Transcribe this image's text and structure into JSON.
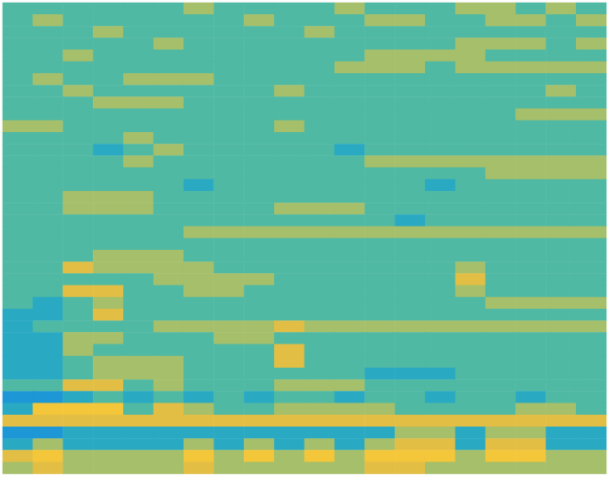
{
  "chart_data": {
    "type": "heatmap",
    "value_range": [
      0,
      9
    ],
    "tick_labels": false,
    "grid": false,
    "cells": [
      [
        5,
        5,
        5,
        5,
        5,
        5,
        6,
        5,
        5,
        5,
        5,
        6,
        5,
        5,
        5,
        6,
        6,
        5,
        6,
        5
      ],
      [
        5,
        6,
        5,
        5,
        5,
        5,
        5,
        5,
        6,
        5,
        5,
        5,
        6,
        6,
        5,
        5,
        6,
        6,
        5,
        6
      ],
      [
        5,
        5,
        5,
        6,
        5,
        5,
        5,
        5,
        5,
        5,
        6,
        5,
        5,
        5,
        5,
        5,
        5,
        5,
        5,
        5
      ],
      [
        5,
        5,
        5,
        5,
        5,
        6,
        5,
        5,
        5,
        5,
        5,
        5,
        5,
        5,
        5,
        6,
        6,
        6,
        5,
        6
      ],
      [
        5,
        5,
        6,
        5,
        5,
        5,
        5,
        5,
        5,
        5,
        5,
        5,
        6,
        6,
        6,
        6,
        5,
        5,
        5,
        5
      ],
      [
        5,
        5,
        5,
        5,
        5,
        5,
        5,
        5,
        5,
        5,
        5,
        6,
        6,
        6,
        5,
        6,
        6,
        6,
        6,
        6
      ],
      [
        5,
        6,
        5,
        5,
        6,
        6,
        6,
        5,
        5,
        5,
        5,
        5,
        5,
        5,
        5,
        5,
        5,
        5,
        5,
        5
      ],
      [
        5,
        5,
        6,
        5,
        5,
        5,
        5,
        5,
        5,
        6,
        5,
        5,
        5,
        5,
        5,
        5,
        5,
        5,
        6,
        5
      ],
      [
        5,
        5,
        5,
        6,
        6,
        6,
        5,
        5,
        5,
        5,
        5,
        5,
        5,
        5,
        5,
        5,
        5,
        5,
        5,
        5
      ],
      [
        5,
        5,
        5,
        5,
        5,
        5,
        5,
        5,
        5,
        5,
        5,
        5,
        5,
        5,
        5,
        5,
        5,
        6,
        6,
        6
      ],
      [
        6,
        6,
        5,
        5,
        5,
        5,
        5,
        5,
        5,
        6,
        5,
        5,
        5,
        5,
        5,
        5,
        5,
        5,
        5,
        5
      ],
      [
        5,
        5,
        5,
        5,
        6,
        5,
        5,
        5,
        5,
        5,
        5,
        5,
        5,
        5,
        5,
        5,
        5,
        5,
        5,
        5
      ],
      [
        5,
        5,
        5,
        4,
        5,
        6,
        5,
        5,
        5,
        5,
        5,
        4,
        5,
        5,
        5,
        5,
        5,
        5,
        5,
        5
      ],
      [
        5,
        5,
        5,
        5,
        6,
        5,
        5,
        5,
        5,
        5,
        5,
        5,
        6,
        6,
        6,
        6,
        6,
        6,
        6,
        6
      ],
      [
        5,
        5,
        5,
        5,
        5,
        5,
        5,
        5,
        5,
        5,
        5,
        5,
        5,
        5,
        5,
        5,
        6,
        6,
        6,
        6
      ],
      [
        5,
        5,
        5,
        5,
        5,
        5,
        4,
        5,
        5,
        5,
        5,
        5,
        5,
        5,
        4,
        5,
        5,
        5,
        5,
        5
      ],
      [
        5,
        5,
        6,
        6,
        6,
        5,
        5,
        5,
        5,
        5,
        5,
        5,
        5,
        5,
        5,
        5,
        5,
        5,
        5,
        5
      ],
      [
        5,
        5,
        6,
        6,
        6,
        5,
        5,
        5,
        5,
        6,
        6,
        6,
        5,
        5,
        5,
        5,
        5,
        5,
        5,
        5
      ],
      [
        5,
        5,
        5,
        5,
        5,
        5,
        5,
        5,
        5,
        5,
        5,
        5,
        5,
        4,
        5,
        5,
        5,
        5,
        5,
        5
      ],
      [
        5,
        5,
        5,
        5,
        5,
        5,
        6,
        6,
        6,
        6,
        6,
        6,
        6,
        6,
        6,
        6,
        6,
        6,
        6,
        6
      ],
      [
        5,
        5,
        5,
        5,
        5,
        5,
        5,
        5,
        5,
        5,
        5,
        5,
        5,
        5,
        5,
        5,
        5,
        5,
        5,
        5
      ],
      [
        5,
        5,
        5,
        6,
        6,
        6,
        5,
        5,
        5,
        5,
        5,
        5,
        5,
        5,
        5,
        5,
        5,
        5,
        5,
        5
      ],
      [
        5,
        5,
        7,
        6,
        6,
        6,
        6,
        5,
        5,
        5,
        5,
        5,
        5,
        5,
        5,
        6,
        5,
        5,
        5,
        5
      ],
      [
        5,
        5,
        5,
        5,
        5,
        6,
        6,
        6,
        6,
        5,
        5,
        5,
        5,
        5,
        5,
        7,
        5,
        5,
        5,
        5
      ],
      [
        5,
        5,
        7,
        7,
        5,
        5,
        6,
        6,
        5,
        5,
        5,
        5,
        5,
        5,
        5,
        6,
        5,
        5,
        5,
        5
      ],
      [
        5,
        4,
        5,
        6,
        5,
        5,
        5,
        5,
        5,
        5,
        5,
        5,
        5,
        5,
        5,
        5,
        6,
        6,
        6,
        6
      ],
      [
        4,
        4,
        5,
        7,
        5,
        5,
        5,
        5,
        5,
        5,
        5,
        5,
        5,
        5,
        5,
        5,
        5,
        5,
        5,
        5
      ],
      [
        4,
        5,
        5,
        5,
        5,
        6,
        6,
        6,
        6,
        7,
        6,
        6,
        6,
        6,
        6,
        6,
        6,
        6,
        6,
        6
      ],
      [
        4,
        4,
        6,
        6,
        5,
        5,
        5,
        6,
        6,
        5,
        5,
        5,
        5,
        5,
        5,
        5,
        5,
        5,
        5,
        5
      ],
      [
        4,
        4,
        6,
        5,
        5,
        5,
        5,
        5,
        5,
        7,
        5,
        5,
        5,
        5,
        5,
        5,
        5,
        5,
        5,
        5
      ],
      [
        4,
        4,
        5,
        6,
        6,
        6,
        5,
        5,
        5,
        7,
        5,
        5,
        5,
        5,
        5,
        5,
        5,
        5,
        5,
        5
      ],
      [
        4,
        4,
        5,
        6,
        6,
        6,
        5,
        5,
        5,
        5,
        5,
        5,
        4,
        4,
        4,
        5,
        5,
        5,
        5,
        5
      ],
      [
        5,
        5,
        7,
        7,
        5,
        6,
        5,
        5,
        5,
        6,
        6,
        6,
        5,
        5,
        5,
        5,
        5,
        5,
        5,
        5
      ],
      [
        3,
        3,
        4,
        5,
        4,
        5,
        4,
        5,
        4,
        5,
        5,
        4,
        5,
        5,
        4,
        5,
        5,
        4,
        5,
        5
      ],
      [
        4,
        8,
        8,
        8,
        5,
        7,
        6,
        5,
        5,
        6,
        6,
        6,
        6,
        5,
        5,
        5,
        5,
        6,
        6,
        5
      ],
      [
        7,
        7,
        7,
        7,
        7,
        7,
        7,
        7,
        7,
        7,
        7,
        7,
        7,
        7,
        7,
        7,
        7,
        7,
        7,
        7
      ],
      [
        3,
        3,
        4,
        4,
        4,
        4,
        4,
        4,
        4,
        4,
        4,
        4,
        4,
        6,
        6,
        4,
        6,
        6,
        4,
        4
      ],
      [
        4,
        6,
        4,
        4,
        4,
        4,
        6,
        4,
        6,
        4,
        6,
        4,
        6,
        7,
        7,
        4,
        7,
        7,
        4,
        4
      ],
      [
        7,
        8,
        6,
        6,
        6,
        6,
        8,
        6,
        8,
        6,
        8,
        6,
        8,
        8,
        8,
        6,
        8,
        8,
        6,
        6
      ],
      [
        6,
        7,
        6,
        6,
        6,
        6,
        7,
        6,
        6,
        6,
        6,
        6,
        7,
        7,
        6,
        6,
        6,
        6,
        6,
        6
      ]
    ]
  }
}
